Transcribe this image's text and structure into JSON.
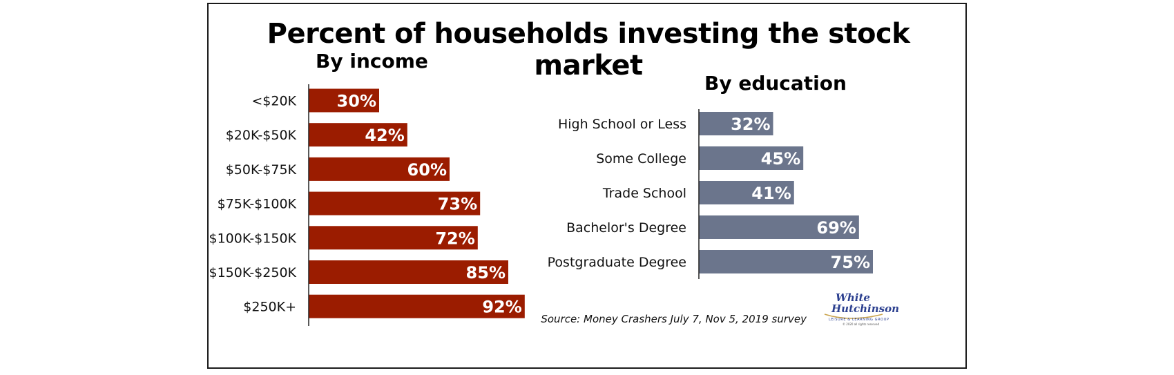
{
  "title": "Percent of households investing the stock market",
  "colors": {
    "income_bar": "#9b1c00",
    "education_bar": "#6b758c",
    "label_text": "#ffffff"
  },
  "chart_data": [
    {
      "type": "bar",
      "orientation": "horizontal",
      "title": "By income",
      "categories": [
        "<$20K",
        "$20K-$50K",
        "$50K-$75K",
        "$75K-$100K",
        "$100K-$150K",
        "$150K-$250K",
        "$250K+"
      ],
      "values": [
        30,
        42,
        60,
        73,
        72,
        85,
        92
      ],
      "value_labels": [
        "30%",
        "42%",
        "60%",
        "73%",
        "72%",
        "85%",
        "92%"
      ],
      "xlim": [
        0,
        100
      ],
      "grid": false,
      "legend": false
    },
    {
      "type": "bar",
      "orientation": "horizontal",
      "title": "By education",
      "categories": [
        "High School or Less",
        "Some College",
        "Trade School",
        "Bachelor's Degree",
        "Postgraduate Degree"
      ],
      "values": [
        32,
        45,
        41,
        69,
        75
      ],
      "value_labels": [
        "32%",
        "45%",
        "41%",
        "69%",
        "75%"
      ],
      "xlim": [
        0,
        100
      ],
      "grid": false,
      "legend": false
    }
  ],
  "source": "Source: Money Crashers July 7, Nov 5, 2019 survey",
  "logo": {
    "line1": "White",
    "line2": "Hutchinson",
    "tagline": "LEISURE & LEARNING GROUP",
    "copyright": "© 2020 all rights reserved"
  }
}
